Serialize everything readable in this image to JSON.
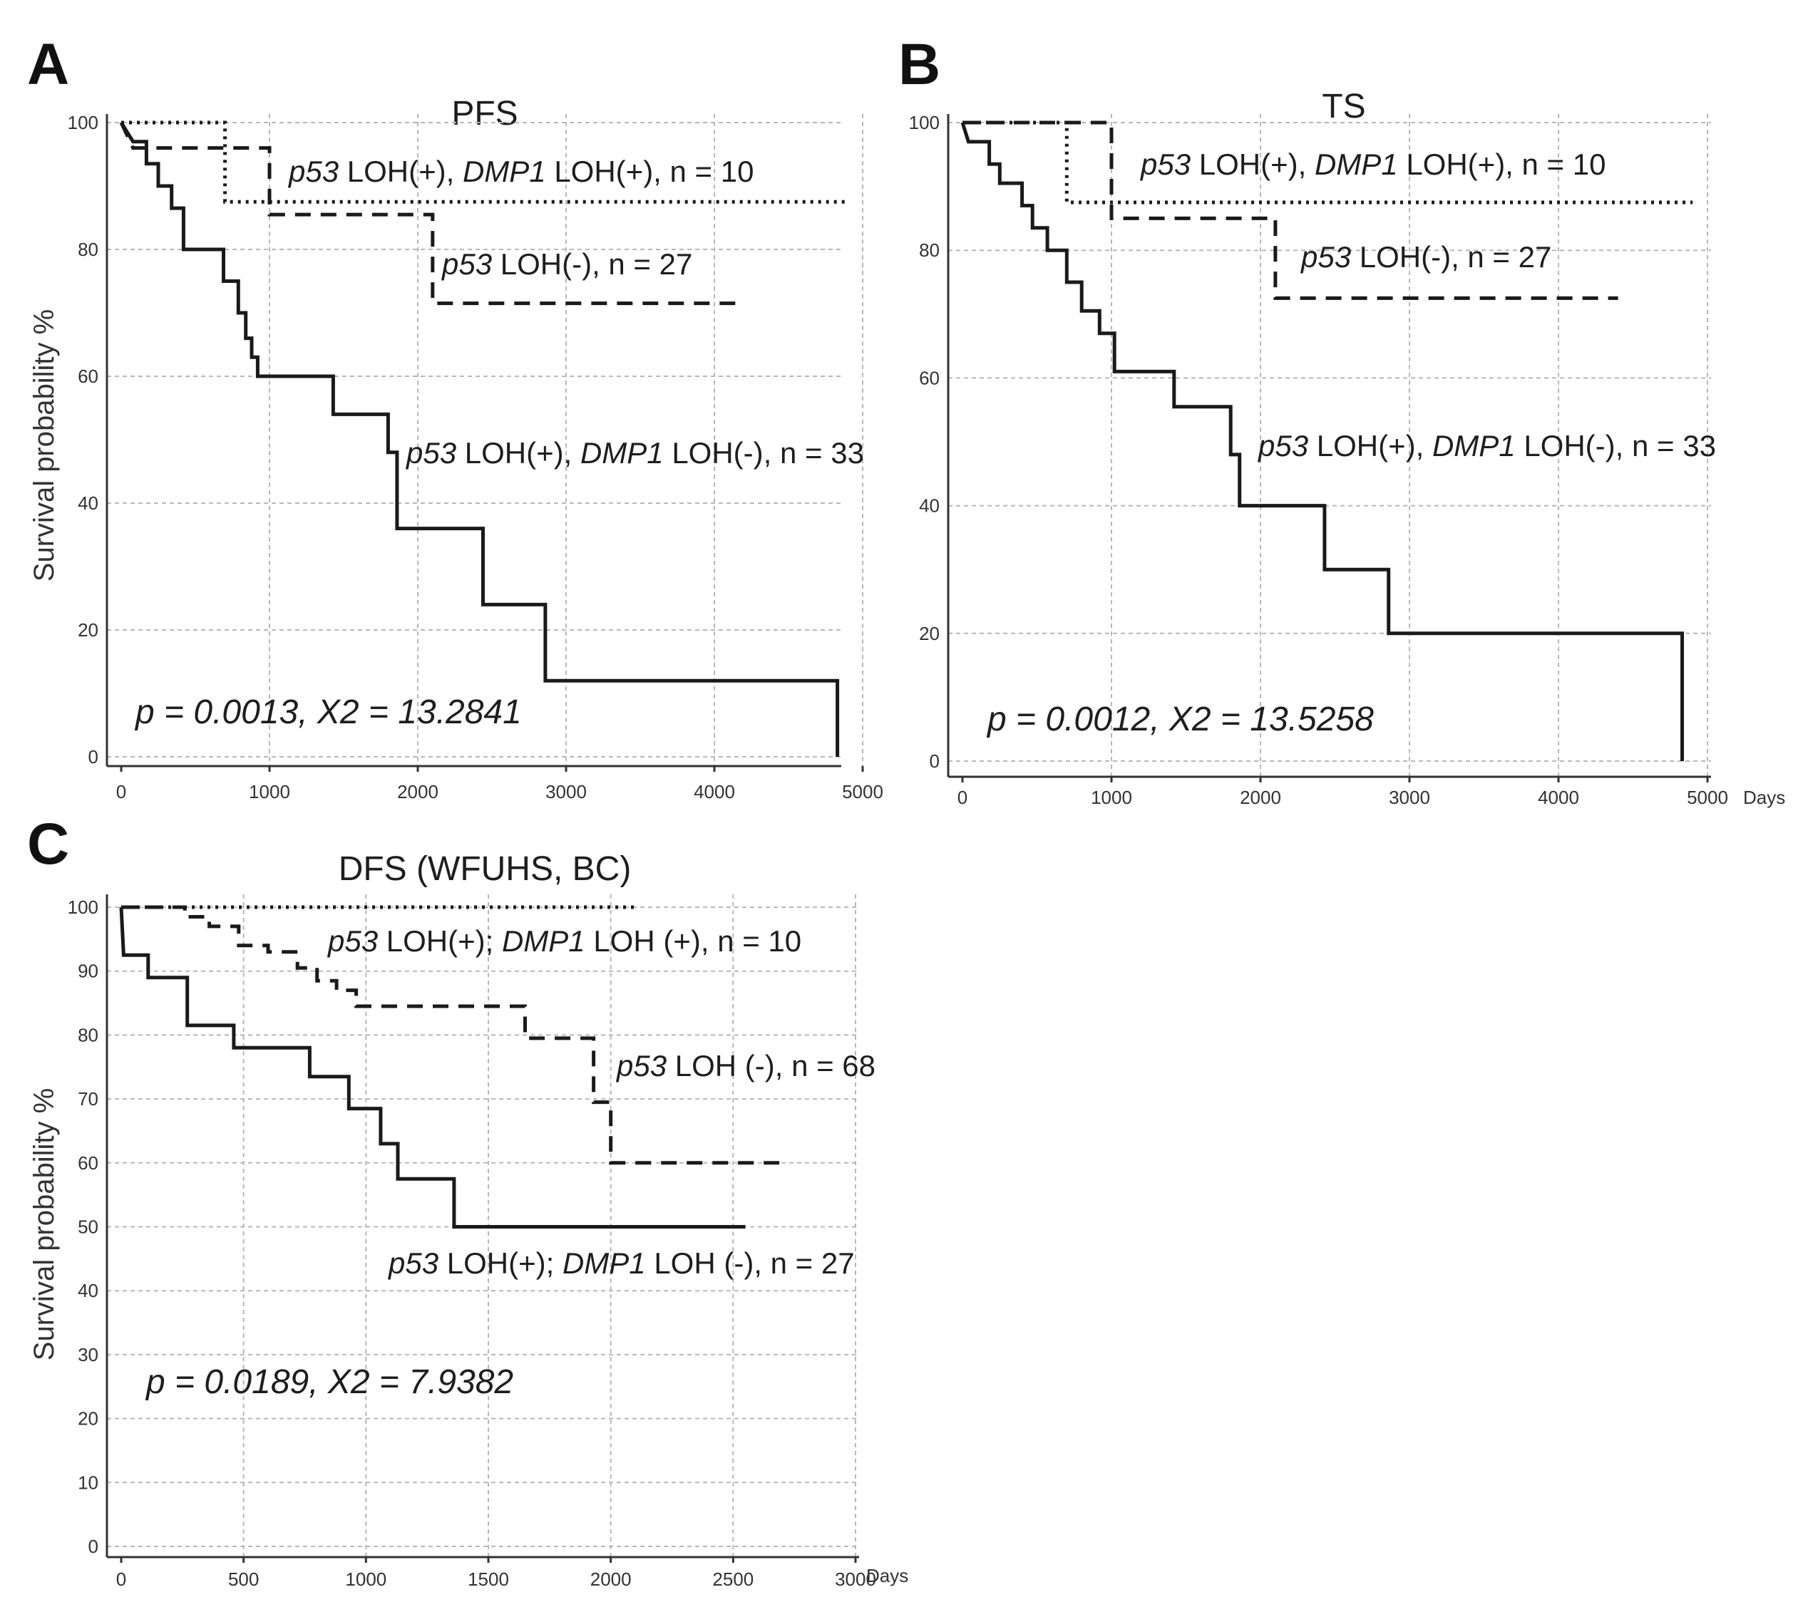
{
  "chart_data": [
    {
      "panel": "A",
      "type": "line",
      "title": "PFS",
      "xlabel": "",
      "ylabel": "Survival probability %",
      "xlim": [
        0,
        5000
      ],
      "ylim": [
        0,
        100
      ],
      "xticks": [
        "0",
        "1000",
        "2000",
        "3000",
        "4000",
        "5000"
      ],
      "yticks": [
        "0",
        "20",
        "40",
        "60",
        "80",
        "100"
      ],
      "stat_text": "p = 0.0013, X2 = 13.2841",
      "series": [
        {
          "label_parts": [
            {
              "t": "p53",
              "i": true
            },
            {
              "t": " LOH(+), ",
              "i": false
            },
            {
              "t": "DMP1",
              "i": true
            },
            {
              "t": " LOH(+), n = 10",
              "i": false
            }
          ],
          "style": "dotted",
          "points": [
            [
              0,
              100
            ],
            [
              700,
              100
            ],
            [
              700,
              87.5
            ],
            [
              4900,
              87.5
            ]
          ]
        },
        {
          "label_parts": [
            {
              "t": "p53",
              "i": true
            },
            {
              "t": " LOH(-), n = 27",
              "i": false
            }
          ],
          "style": "dashed",
          "points": [
            [
              0,
              100
            ],
            [
              80,
              96
            ],
            [
              1000,
              96
            ],
            [
              1000,
              85.5
            ],
            [
              2100,
              85.5
            ],
            [
              2100,
              71.5
            ],
            [
              4200,
              71.5
            ]
          ]
        },
        {
          "label_parts": [
            {
              "t": "p53",
              "i": true
            },
            {
              "t": " LOH(+), ",
              "i": false
            },
            {
              "t": "DMP1",
              "i": true
            },
            {
              "t": " LOH(-), n = 33",
              "i": false
            }
          ],
          "style": "solid",
          "points": [
            [
              0,
              100
            ],
            [
              80,
              97
            ],
            [
              170,
              97
            ],
            [
              170,
              93.5
            ],
            [
              250,
              93.5
            ],
            [
              250,
              90
            ],
            [
              340,
              90
            ],
            [
              340,
              86.5
            ],
            [
              420,
              86.5
            ],
            [
              420,
              80
            ],
            [
              690,
              80
            ],
            [
              690,
              75
            ],
            [
              790,
              75
            ],
            [
              790,
              70
            ],
            [
              840,
              70
            ],
            [
              840,
              66
            ],
            [
              880,
              66
            ],
            [
              880,
              63
            ],
            [
              920,
              63
            ],
            [
              920,
              60
            ],
            [
              1430,
              60
            ],
            [
              1430,
              54
            ],
            [
              1800,
              54
            ],
            [
              1800,
              48
            ],
            [
              1860,
              48
            ],
            [
              1860,
              36
            ],
            [
              2440,
              36
            ],
            [
              2440,
              24
            ],
            [
              2860,
              24
            ],
            [
              2860,
              12
            ],
            [
              4830,
              12
            ],
            [
              4830,
              0
            ]
          ]
        }
      ]
    },
    {
      "panel": "B",
      "type": "line",
      "title": "TS",
      "xlabel": "Days",
      "ylabel": "",
      "xlim": [
        0,
        5000
      ],
      "ylim": [
        0,
        100
      ],
      "xticks": [
        "0",
        "1000",
        "2000",
        "3000",
        "4000",
        "5000"
      ],
      "yticks": [
        "0",
        "20",
        "40",
        "60",
        "80",
        "100"
      ],
      "stat_text": "p = 0.0012, X2 = 13.5258",
      "series": [
        {
          "label_parts": [
            {
              "t": "p53",
              "i": true
            },
            {
              "t": " LOH(+), ",
              "i": false
            },
            {
              "t": "DMP1",
              "i": true
            },
            {
              "t": " LOH(+), n = 10",
              "i": false
            }
          ],
          "style": "dotted",
          "points": [
            [
              0,
              100
            ],
            [
              700,
              100
            ],
            [
              700,
              87.5
            ],
            [
              4900,
              87.5
            ]
          ]
        },
        {
          "label_parts": [
            {
              "t": "p53",
              "i": true
            },
            {
              "t": " LOH(-), n = 27",
              "i": false
            }
          ],
          "style": "dashed",
          "points": [
            [
              0,
              100
            ],
            [
              1000,
              100
            ],
            [
              1000,
              85
            ],
            [
              2100,
              85
            ],
            [
              2100,
              72.5
            ],
            [
              4400,
              72.5
            ]
          ]
        },
        {
          "label_parts": [
            {
              "t": "p53",
              "i": true
            },
            {
              "t": " LOH(+), ",
              "i": false
            },
            {
              "t": "DMP1",
              "i": true
            },
            {
              "t": " LOH(-), n = 33",
              "i": false
            }
          ],
          "style": "solid",
          "points": [
            [
              0,
              100
            ],
            [
              40,
              97
            ],
            [
              180,
              97
            ],
            [
              180,
              93.5
            ],
            [
              250,
              93.5
            ],
            [
              250,
              90.5
            ],
            [
              400,
              90.5
            ],
            [
              400,
              87
            ],
            [
              470,
              87
            ],
            [
              470,
              83.5
            ],
            [
              570,
              83.5
            ],
            [
              570,
              80
            ],
            [
              700,
              80
            ],
            [
              700,
              75
            ],
            [
              800,
              75
            ],
            [
              800,
              70.5
            ],
            [
              920,
              70.5
            ],
            [
              920,
              67
            ],
            [
              1020,
              67
            ],
            [
              1020,
              61
            ],
            [
              1420,
              61
            ],
            [
              1420,
              55.5
            ],
            [
              1800,
              55.5
            ],
            [
              1800,
              48
            ],
            [
              1860,
              48
            ],
            [
              1860,
              40
            ],
            [
              2430,
              40
            ],
            [
              2430,
              30
            ],
            [
              2860,
              30
            ],
            [
              2860,
              20
            ],
            [
              4830,
              20
            ],
            [
              4830,
              0
            ]
          ]
        }
      ]
    },
    {
      "panel": "C",
      "type": "line",
      "title": "DFS (WFUHS, BC)",
      "xlabel": "Days",
      "ylabel": "Survival probability %",
      "xlim": [
        0,
        3000
      ],
      "ylim": [
        0,
        100
      ],
      "xticks": [
        "0",
        "500",
        "1000",
        "1500",
        "2000",
        "2500",
        "3000"
      ],
      "yticks": [
        "0",
        "10",
        "20",
        "30",
        "40",
        "50",
        "60",
        "70",
        "80",
        "90",
        "100"
      ],
      "stat_text": "p = 0.0189, X2 = 7.9382",
      "series": [
        {
          "label_parts": [
            {
              "t": "p53",
              "i": true
            },
            {
              "t": " LOH(+); ",
              "i": false
            },
            {
              "t": "DMP1",
              "i": true
            },
            {
              "t": " LOH (+), n = 10",
              "i": false
            }
          ],
          "style": "dotted",
          "points": [
            [
              0,
              100
            ],
            [
              2100,
              100
            ]
          ]
        },
        {
          "label_parts": [
            {
              "t": "p53",
              "i": true
            },
            {
              "t": " LOH (-), n = 68",
              "i": false
            }
          ],
          "style": "dashed",
          "points": [
            [
              0,
              100
            ],
            [
              260,
              100
            ],
            [
              260,
              98.5
            ],
            [
              360,
              98.5
            ],
            [
              360,
              97
            ],
            [
              480,
              97
            ],
            [
              480,
              94
            ],
            [
              600,
              94
            ],
            [
              600,
              93
            ],
            [
              720,
              93
            ],
            [
              720,
              90.5
            ],
            [
              800,
              90.5
            ],
            [
              800,
              88.5
            ],
            [
              880,
              88.5
            ],
            [
              880,
              87
            ],
            [
              960,
              87
            ],
            [
              960,
              84.5
            ],
            [
              1650,
              84.5
            ],
            [
              1650,
              79.5
            ],
            [
              1930,
              79.5
            ],
            [
              1930,
              69.5
            ],
            [
              2000,
              69.5
            ],
            [
              2000,
              60
            ],
            [
              2700,
              60
            ]
          ]
        },
        {
          "label_parts": [
            {
              "t": "p53",
              "i": true
            },
            {
              "t": " LOH(+); ",
              "i": false
            },
            {
              "t": "DMP1",
              "i": true
            },
            {
              "t": " LOH (-), n = 27",
              "i": false
            }
          ],
          "style": "solid",
          "points": [
            [
              0,
              100
            ],
            [
              10,
              92.5
            ],
            [
              110,
              92.5
            ],
            [
              110,
              89
            ],
            [
              270,
              89
            ],
            [
              270,
              81.5
            ],
            [
              460,
              81.5
            ],
            [
              460,
              78
            ],
            [
              770,
              78
            ],
            [
              770,
              73.5
            ],
            [
              930,
              73.5
            ],
            [
              930,
              68.5
            ],
            [
              1060,
              68.5
            ],
            [
              1060,
              63
            ],
            [
              1130,
              63
            ],
            [
              1130,
              57.5
            ],
            [
              1360,
              57.5
            ],
            [
              1360,
              50
            ],
            [
              2550,
              50
            ]
          ]
        }
      ]
    }
  ]
}
